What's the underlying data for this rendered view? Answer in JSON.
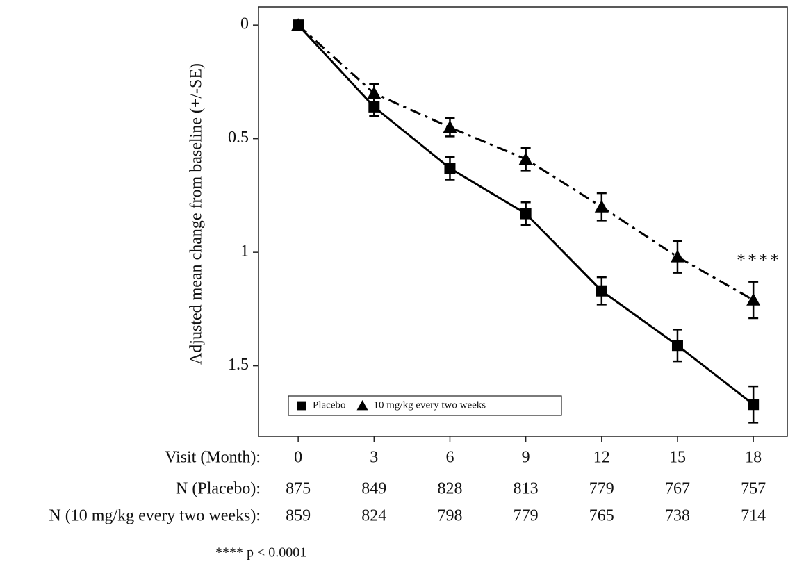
{
  "chart_data": {
    "type": "line",
    "y_label": "Adjusted mean change from baseline (+/-SE)",
    "x": [
      0,
      3,
      6,
      9,
      12,
      15,
      18
    ],
    "xlim": [
      -1.57,
      19.37
    ],
    "xticks": [
      0,
      3,
      6,
      9,
      12,
      15,
      18
    ],
    "x_row_label": "Visit (Month):",
    "ylim": [
      -0.08,
      1.81
    ],
    "y_inverted": true,
    "yticks": [
      0,
      0.5,
      1,
      1.5
    ],
    "series": [
      {
        "name": "Placebo",
        "color": "#000000",
        "marker": "square",
        "dash": "solid",
        "values": [
          0,
          0.36,
          0.63,
          0.83,
          1.17,
          1.41,
          1.67
        ],
        "errors": [
          0,
          0.04,
          0.05,
          0.05,
          0.06,
          0.07,
          0.08
        ]
      },
      {
        "name": "10 mg/kg every two weeks",
        "color": "#000000",
        "marker": "triangle",
        "dash": "dashdot",
        "values": [
          0,
          0.3,
          0.45,
          0.59,
          0.8,
          1.02,
          1.21
        ],
        "errors": [
          0,
          0.04,
          0.04,
          0.05,
          0.06,
          0.07,
          0.08
        ]
      }
    ],
    "annotation": "****",
    "n_table": [
      {
        "label": "N (Placebo):",
        "values": [
          875,
          849,
          828,
          813,
          779,
          767,
          757
        ]
      },
      {
        "label": "N (10 mg/kg every two weeks):",
        "values": [
          859,
          824,
          798,
          779,
          765,
          738,
          714
        ]
      }
    ],
    "footnote": "**** p < 0.0001"
  }
}
